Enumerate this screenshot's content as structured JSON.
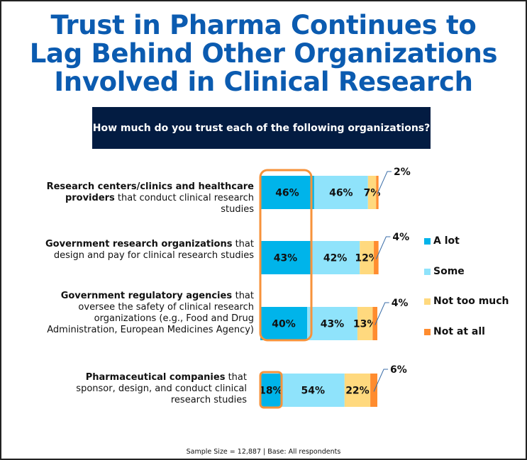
{
  "title_lines": [
    "Trust in Pharma Continues to",
    "Lag Behind Other Organizations",
    "Involved in Clinical Research"
  ],
  "question": "How much do you trust each of the following organizations?",
  "footer": "Sample Size = 12,887 | Base: All respondents",
  "colors": {
    "title": "#0b5bb0",
    "question_bg": "#031c42",
    "a_lot": "#00b4ea",
    "some": "#8fe3fb",
    "not_too_much": "#ffd97e",
    "not_at_all": "#ff8c2f",
    "highlight": "#f7923a"
  },
  "rows": [
    {
      "bold": "Research centers/clinics and healthcare providers",
      "rest": " that conduct clinical research studies"
    },
    {
      "bold": "Government research organizations",
      "rest": " that design and pay for clinical research studies"
    },
    {
      "bold": "Government regulatory agencies ",
      "rest": " that oversee the safety of clinical research organizations (e.g., Food and Drug Administration, European Medicines Agency)"
    },
    {
      "bold": "Pharmaceutical companies",
      "rest": " that sponsor, design, and conduct clinical research studies"
    }
  ],
  "chart_data": {
    "type": "bar",
    "orientation": "horizontal-stacked",
    "title": "Trust in Pharma Continues to Lag Behind Other Organizations Involved in Clinical Research",
    "subtitle": "How much do you trust each of the following organizations?",
    "categories": [
      "Research centers/clinics and healthcare providers that conduct clinical research studies",
      "Government research organizations that design and pay for clinical research studies",
      "Government regulatory agencies that oversee the safety of clinical research organizations (e.g., Food and Drug Administration, European Medicines Agency)",
      "Pharmaceutical companies that sponsor, design, and conduct clinical research studies"
    ],
    "series": [
      {
        "name": "A lot",
        "values": [
          46,
          43,
          40,
          18
        ]
      },
      {
        "name": "Some",
        "values": [
          46,
          42,
          43,
          54
        ]
      },
      {
        "name": "Not too much",
        "values": [
          7,
          12,
          13,
          22
        ]
      },
      {
        "name": "Not at all",
        "values": [
          2,
          4,
          4,
          6
        ]
      }
    ],
    "value_labels": {
      "A lot": [
        "46%",
        "43%",
        "40%",
        "18%"
      ],
      "Some": [
        "46%",
        "42%",
        "43%",
        "54%"
      ],
      "Not too much": [
        "7%",
        "12%",
        "13%",
        "22%"
      ],
      "Not at all": [
        "2%",
        "4%",
        "4%",
        "6%"
      ]
    },
    "legend": [
      "A lot",
      "Some",
      "Not too much",
      "Not at all"
    ],
    "legend_position": "right",
    "highlight": "A lot column highlighted for first three rows; Pharmaceutical companies 'A lot' highlighted separately",
    "xlim": [
      0,
      100
    ],
    "note": "Sample Size = 12,887 | Base: All respondents"
  }
}
